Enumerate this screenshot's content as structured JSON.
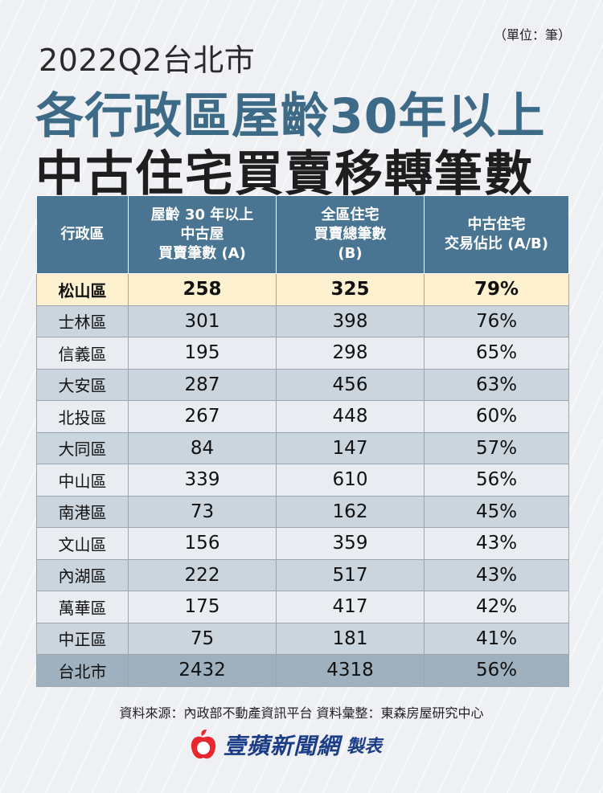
{
  "header": {
    "unit": "（單位：筆）",
    "title_line1": "2022Q2台北市",
    "title_line2": "各行政區屋齡30年以上",
    "title_line3": "中古住宅買賣移轉筆數"
  },
  "chart_data": {
    "type": "table",
    "columns": [
      "行政區",
      "屋齡 30 年以上 中古屋 買賣筆數 (A)",
      "全區住宅 買賣總筆數 (B)",
      "中古住宅 交易佔比 (A/B)"
    ],
    "header_lines": [
      [
        "行政區"
      ],
      [
        "屋齡 30 年以上",
        "中古屋",
        "買賣筆數 (A)"
      ],
      [
        "全區住宅",
        "買賣總筆數",
        "(B)"
      ],
      [
        "中古住宅",
        "交易佔比 (A/B)"
      ]
    ],
    "rows": [
      [
        "松山區",
        "258",
        "325",
        "79%"
      ],
      [
        "士林區",
        "301",
        "398",
        "76%"
      ],
      [
        "信義區",
        "195",
        "298",
        "65%"
      ],
      [
        "大安區",
        "287",
        "456",
        "63%"
      ],
      [
        "北投區",
        "267",
        "448",
        "60%"
      ],
      [
        "大同區",
        "84",
        "147",
        "57%"
      ],
      [
        "中山區",
        "339",
        "610",
        "56%"
      ],
      [
        "南港區",
        "73",
        "162",
        "45%"
      ],
      [
        "文山區",
        "156",
        "359",
        "43%"
      ],
      [
        "內湖區",
        "222",
        "517",
        "43%"
      ],
      [
        "萬華區",
        "175",
        "417",
        "42%"
      ],
      [
        "中正區",
        "75",
        "181",
        "41%"
      ],
      [
        "台北市",
        "2432",
        "4318",
        "56%"
      ]
    ],
    "highlight_row": 0,
    "total_row": 12
  },
  "footer": {
    "source": "資料來源：內政部不動產資訊平台 資料彙整：東森房屋研究中心",
    "brand": "壹蘋新聞網",
    "brand_suffix": "製表"
  },
  "colors": {
    "header_bg": "#4a7592",
    "title_accent": "#3d6a87",
    "highlight": "#fdf1cf",
    "brand": "#1b3d87",
    "logo_red": "#e8262d"
  }
}
